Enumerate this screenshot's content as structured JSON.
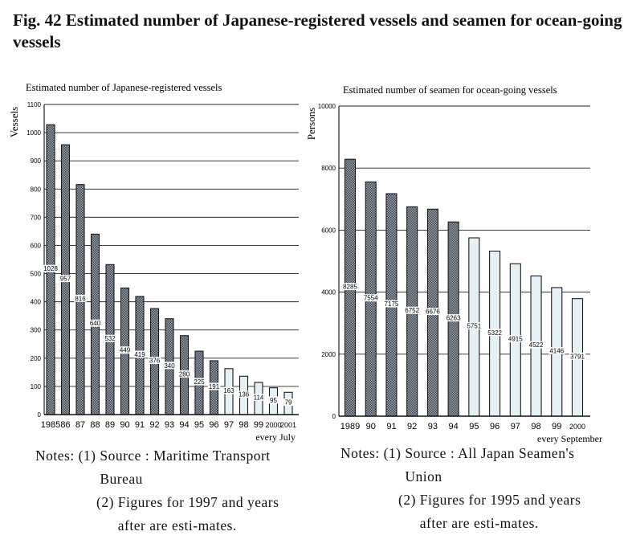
{
  "figure": {
    "title": "Fig. 42 Estimated number of Japanese-registered vessels and seamen for ocean-going vessels"
  },
  "chart_data": [
    {
      "type": "bar",
      "title": "Estimated number of Japanese-registered vessels",
      "ylabel": "Vessels",
      "xlabel": "",
      "period_note": "every July",
      "ylim": [
        0,
        1100
      ],
      "yticks": [
        0,
        100,
        200,
        300,
        400,
        500,
        600,
        700,
        800,
        900,
        1000,
        1100
      ],
      "grid": true,
      "categories": [
        "1985",
        "86",
        "87",
        "88",
        "89",
        "90",
        "91",
        "92",
        "93",
        "94",
        "95",
        "96",
        "97",
        "98",
        "99",
        "2000",
        "2001"
      ],
      "values": [
        1028,
        957,
        816,
        640,
        532,
        449,
        419,
        376,
        340,
        280,
        225,
        191,
        163,
        136,
        114,
        95,
        79
      ],
      "value_labels": [
        "1028",
        "957",
        "816",
        "640",
        "532",
        "449",
        "419",
        "376",
        "340",
        "280",
        "225",
        "191",
        "163",
        "136",
        "114",
        "95",
        "79"
      ],
      "estimated": [
        false,
        false,
        false,
        false,
        false,
        false,
        false,
        false,
        false,
        false,
        false,
        false,
        true,
        true,
        true,
        true,
        true
      ],
      "colors": {
        "actual": "#5a6470",
        "estimated": "#e4f2f6"
      }
    },
    {
      "type": "bar",
      "title": "Estimated number of seamen for ocean-going vessels",
      "ylabel": "Persons",
      "xlabel": "",
      "period_note": "every September",
      "ylim": [
        0,
        10000
      ],
      "yticks": [
        0,
        2000,
        4000,
        6000,
        8000,
        10000
      ],
      "grid": true,
      "categories": [
        "1989",
        "90",
        "91",
        "92",
        "93",
        "94",
        "95",
        "96",
        "97",
        "98",
        "99",
        "2000"
      ],
      "values": [
        8285,
        7554,
        7175,
        6752,
        6676,
        6263,
        5751,
        5322,
        4915,
        4522,
        4146,
        3791
      ],
      "value_labels": [
        "8285",
        "7554",
        "7175",
        "6752",
        "6676",
        "6263",
        "5751",
        "5322",
        "4915",
        "4522",
        "4146",
        "3791"
      ],
      "estimated": [
        false,
        false,
        false,
        false,
        false,
        false,
        true,
        true,
        true,
        true,
        true,
        true
      ],
      "colors": {
        "actual": "#5a6470",
        "estimated": "#e4f2f6"
      }
    }
  ],
  "notes": {
    "left": {
      "prefix": "Notes:",
      "items": [
        {
          "num": "(1)",
          "text": "Source :  Maritime Transport Bureau"
        },
        {
          "num": "(2)",
          "text": "Figures for 1997 and years after are esti-mates."
        }
      ]
    },
    "right": {
      "prefix": "Notes:",
      "items": [
        {
          "num": "(1)",
          "text": "Source :  All Japan Seamen's Union"
        },
        {
          "num": "(2)",
          "text": "Figures for 1995 and years after are esti-mates."
        }
      ]
    }
  }
}
